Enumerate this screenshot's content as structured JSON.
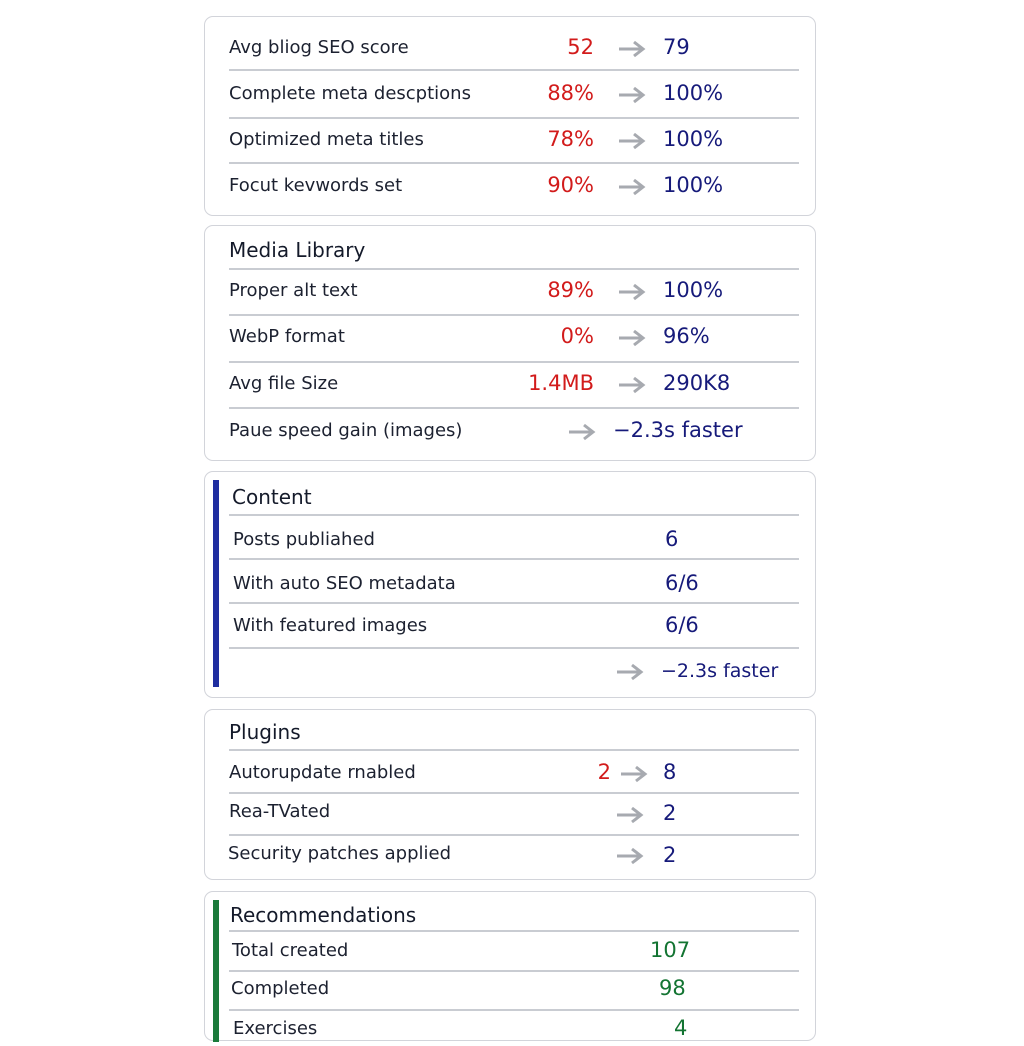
{
  "seo": {
    "rows": [
      {
        "label": "Avg bliog SEO score",
        "before": "52",
        "after": "79"
      },
      {
        "label": "Complete meta descptions",
        "before": "88%",
        "after": "100%"
      },
      {
        "label": "Optimized meta titles",
        "before": "78%",
        "after": "100%"
      },
      {
        "label": "Focut kevwords set",
        "before": "90%",
        "after": "100%"
      }
    ]
  },
  "media": {
    "title": "Media Library",
    "rows": [
      {
        "label": "Proper alt text",
        "before": "89%",
        "after": "100%"
      },
      {
        "label": "WebP format",
        "before": "0%",
        "after": "96%"
      },
      {
        "label": "Avg file Size",
        "before": "1.4MB",
        "after": "290K8"
      },
      {
        "label": "Paue speed gain (images)",
        "after": "−2.3s faster"
      }
    ]
  },
  "content": {
    "title": "Content",
    "rows": [
      {
        "label": "Posts publiahed",
        "value": "6"
      },
      {
        "label": "With auto SEO metadata",
        "value": "6/6"
      },
      {
        "label": "With featured images",
        "value": "6/6"
      },
      {
        "label": "",
        "value": "−2.3s faster"
      }
    ]
  },
  "plugins": {
    "title": "Plugins",
    "rows": [
      {
        "label": "Autorupdate rnabled",
        "before": "2",
        "after": "8"
      },
      {
        "label": "Rea-TVated",
        "after": "2"
      },
      {
        "label": "Security patches applied",
        "after": "2"
      }
    ]
  },
  "recommendations": {
    "title": "Recommendations",
    "rows": [
      {
        "label": "Total created",
        "value": "107"
      },
      {
        "label": "Completed",
        "value": "98"
      },
      {
        "label": "Exercises",
        "value": "4"
      }
    ]
  },
  "icons": {
    "arrow": "arrow-right-icon"
  },
  "colors": {
    "before": "#d21b1b",
    "after": "#161a7a",
    "accent_blue": "#1f2ea0",
    "accent_green": "#1a7a3a",
    "value_green": "#137432"
  }
}
